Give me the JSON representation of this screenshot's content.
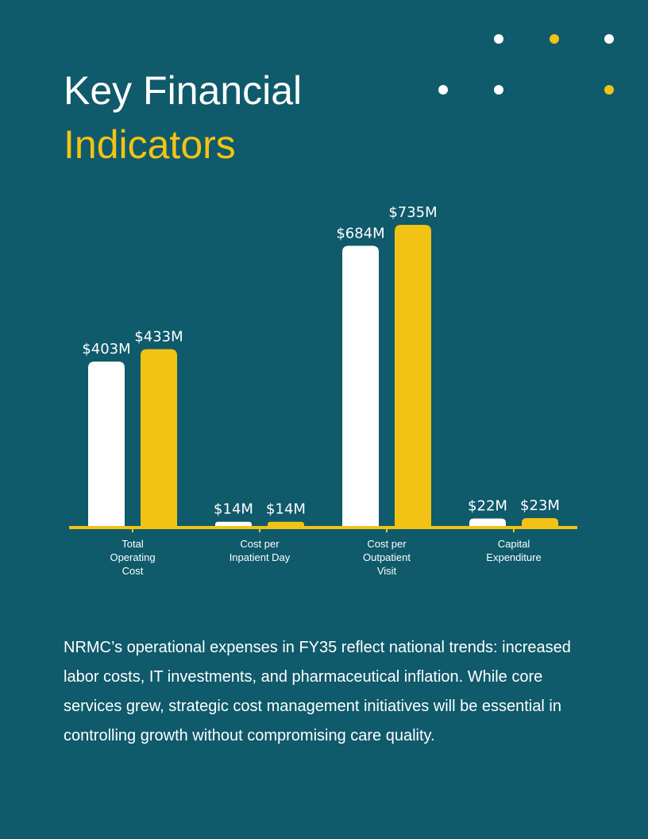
{
  "title": {
    "line1": "Key Financial",
    "line2": "Indicators"
  },
  "colors": {
    "background": "#0f5a6b",
    "series_a": "#ffffff",
    "series_b": "#f2c314",
    "axis": "#f2c314"
  },
  "chart_data": {
    "type": "bar",
    "categories": [
      [
        "Total",
        "Operating",
        "Cost"
      ],
      [
        "Cost per",
        "Inpatient Day"
      ],
      [
        "Cost per",
        "Outpatient",
        "Visit"
      ],
      [
        "Capital",
        "Expenditure"
      ]
    ],
    "series": [
      {
        "values": [
          403,
          14,
          684,
          22
        ],
        "labels": [
          "$403M",
          "$14M",
          "$684M",
          "$22M"
        ],
        "color": "#ffffff"
      },
      {
        "values": [
          433,
          14,
          735,
          23
        ],
        "labels": [
          "$433M",
          "$14M",
          "$735M",
          "$23M"
        ],
        "color": "#f2c314"
      }
    ],
    "ylim": [
      0,
      735
    ],
    "grid": false,
    "legend": "none"
  },
  "body": "NRMC’s operational expenses in FY35 reflect national trends: increased labor costs, IT investments, and pharmaceutical inflation. While core services grew, strategic cost management initiatives will be essential in controlling growth without compromising care quality."
}
